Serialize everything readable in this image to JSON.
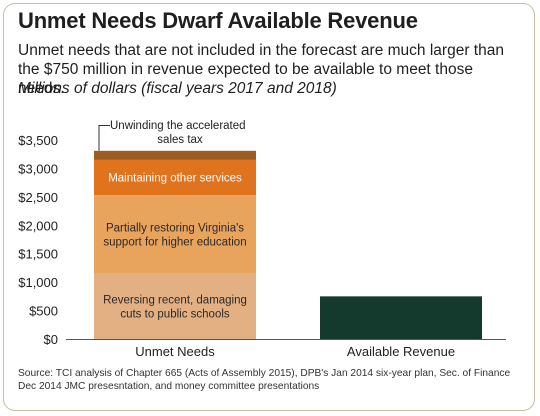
{
  "title": "Unmet Needs Dwarf Available Revenue",
  "subtitle": "Unmet needs that are not included in the forecast are much larger than the $750 million in revenue expected to be available to meet those needs.",
  "units": "Millions of dollars (fiscal years 2017 and 2018)",
  "source": "Source: TCI analysis of Chapter 665 (Acts of Assembly 2015), DPB's Jan 2014 six-year plan, Sec. of Finance Dec 2014 JMC presesntation, and money committee presentations",
  "chart_data": {
    "type": "bar",
    "stacked": true,
    "categories": [
      "Unmet Needs",
      "Available Revenue"
    ],
    "ylim": [
      0,
      3500
    ],
    "yticks": [
      0,
      500,
      1000,
      1500,
      2000,
      2500,
      3000,
      3500
    ],
    "ytick_labels": [
      "$0",
      "$500",
      "$1,000",
      "$1,500",
      "$2,000",
      "$2,500",
      "$3,000",
      "$3,500"
    ],
    "grid": false,
    "series": [
      {
        "name": "Reversing recent, damaging cuts to public schools",
        "color": "#e3b083",
        "values": [
          1150,
          0
        ]
      },
      {
        "name": "Partially restoring Virginia's support for higher education",
        "color": "#e8a35c",
        "values": [
          1380,
          0
        ]
      },
      {
        "name": "Maintaining other services",
        "color": "#e0731e",
        "values": [
          620,
          0
        ]
      },
      {
        "name": "Unwinding the accelerated sales tax",
        "color": "#9b5d23",
        "values": [
          160,
          0
        ]
      },
      {
        "name": "",
        "color": "#143a2e",
        "values": [
          0,
          750
        ]
      }
    ],
    "segment_labels": [
      [
        "Reversing recent, damaging",
        "cuts to public schools"
      ],
      [
        "Partially restoring Virginia's",
        "support for higher education"
      ],
      [
        "Maintaining other services"
      ],
      [
        "Unwinding the accelerated",
        "sales tax"
      ],
      []
    ]
  }
}
